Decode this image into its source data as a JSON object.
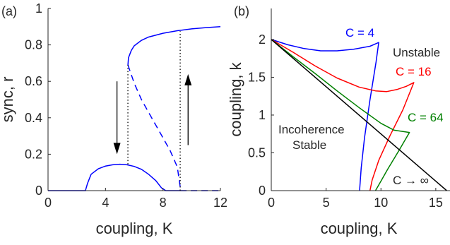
{
  "chart_data": [
    {
      "type": "line",
      "panel_label": "(a)",
      "xlabel": "coupling, K",
      "ylabel": "sync, r",
      "xlim": [
        0,
        12
      ],
      "ylim": [
        0,
        1
      ],
      "xticks": [
        "0",
        "4",
        "8",
        "12"
      ],
      "xtick_values": [
        0,
        4,
        8,
        12
      ],
      "yticks": [
        "0",
        "0.2",
        "0.4",
        "0.6",
        "0.8",
        "1"
      ],
      "ytick_values": [
        0,
        0.2,
        0.4,
        0.6,
        0.8,
        1
      ],
      "grid": false,
      "colors": {
        "series": "#0000ff",
        "guides": "#000000"
      },
      "series": [
        {
          "style": "solid",
          "x": [
            5.56,
            5.6,
            5.8,
            6.0,
            6.5,
            7.0,
            8.0,
            9.0,
            10.0,
            11.0,
            12.0
          ],
          "y": [
            0.69,
            0.73,
            0.77,
            0.795,
            0.825,
            0.843,
            0.864,
            0.878,
            0.888,
            0.895,
            0.9
          ]
        },
        {
          "style": "dashed",
          "x": [
            5.56,
            6.0,
            6.5,
            7.0,
            7.5,
            8.0,
            8.5,
            9.0,
            9.2
          ],
          "y": [
            0.69,
            0.59,
            0.5,
            0.43,
            0.36,
            0.29,
            0.22,
            0.13,
            0.02
          ]
        },
        {
          "style": "solid",
          "x": [
            0,
            2.6,
            2.75,
            3.0,
            3.5,
            4.0,
            4.5,
            5.0,
            5.5,
            6.0,
            6.5,
            7.0,
            7.5,
            7.9,
            8.2,
            9.2
          ],
          "y": [
            0,
            0,
            0.04,
            0.09,
            0.12,
            0.135,
            0.142,
            0.145,
            0.142,
            0.133,
            0.117,
            0.09,
            0.055,
            0.015,
            0,
            0
          ]
        },
        {
          "style": "dashed",
          "x": [
            9.2,
            12.0
          ],
          "y": [
            0,
            0
          ]
        }
      ],
      "guides": [
        {
          "style": "dotted",
          "x": 5.56,
          "y_range": [
            0.145,
            0.69
          ]
        },
        {
          "style": "dotted",
          "x": 9.2,
          "y_range": [
            0,
            0.875
          ]
        }
      ],
      "arrows": [
        {
          "direction": "down",
          "x": 4.8,
          "y_from": 0.6,
          "y_to": 0.2
        },
        {
          "direction": "up",
          "x": 9.75,
          "y_from": 0.25,
          "y_to": 0.64
        }
      ]
    },
    {
      "type": "line",
      "panel_label": "(b)",
      "xlabel": "coupling, K",
      "ylabel": "coupling, k",
      "xlim": [
        0,
        16
      ],
      "ylim": [
        0,
        2.2
      ],
      "xticks": [
        "0",
        "5",
        "10",
        "15"
      ],
      "xtick_values": [
        0,
        5,
        10,
        15
      ],
      "yticks": [
        "0",
        "0.5",
        "1",
        "1.5",
        "2"
      ],
      "ytick_values": [
        0,
        0.5,
        1,
        1.5,
        2
      ],
      "grid": false,
      "colors": {
        "C4": "#0000ff",
        "C16": "#ff0000",
        "C64": "#008000",
        "Cinf": "#000000"
      },
      "series": [
        {
          "label": "C = 4",
          "color": "#0000ff",
          "x": [
            0,
            1.5,
            3,
            4.5,
            6,
            7.5,
            9,
            9.8,
            9.55,
            9.0,
            8.5,
            8.2,
            8.05
          ],
          "y": [
            2.0,
            1.93,
            1.88,
            1.85,
            1.85,
            1.87,
            1.91,
            1.96,
            1.7,
            1.2,
            0.7,
            0.3,
            0.0
          ]
        },
        {
          "label": "C = 16",
          "color": "#ff0000",
          "x": [
            0,
            2,
            4,
            6,
            8,
            9.5,
            10.5,
            11.5,
            12.3,
            13.0,
            12.0,
            10.8,
            9.8,
            9.2,
            9.0
          ],
          "y": [
            2.0,
            1.83,
            1.65,
            1.49,
            1.37,
            1.32,
            1.31,
            1.34,
            1.38,
            1.43,
            1.07,
            0.72,
            0.4,
            0.14,
            0.0
          ]
        },
        {
          "label": "C = 64",
          "color": "#008000",
          "x": [
            0,
            2,
            4,
            6,
            8,
            10,
            11.2,
            12.6,
            11.6,
            10.6,
            9.9,
            9.5
          ],
          "y": [
            2.0,
            1.77,
            1.55,
            1.32,
            1.1,
            0.89,
            0.8,
            0.77,
            0.52,
            0.28,
            0.1,
            0.0
          ]
        },
        {
          "label": "C → ∞",
          "color": "#000000",
          "x": [
            0,
            16
          ],
          "y": [
            2.0,
            0.0
          ]
        }
      ],
      "annotations": [
        "C = 4",
        "C = 16",
        "C = 64",
        "C → ∞",
        "Unstable",
        "Incoherence",
        "Stable"
      ]
    }
  ]
}
